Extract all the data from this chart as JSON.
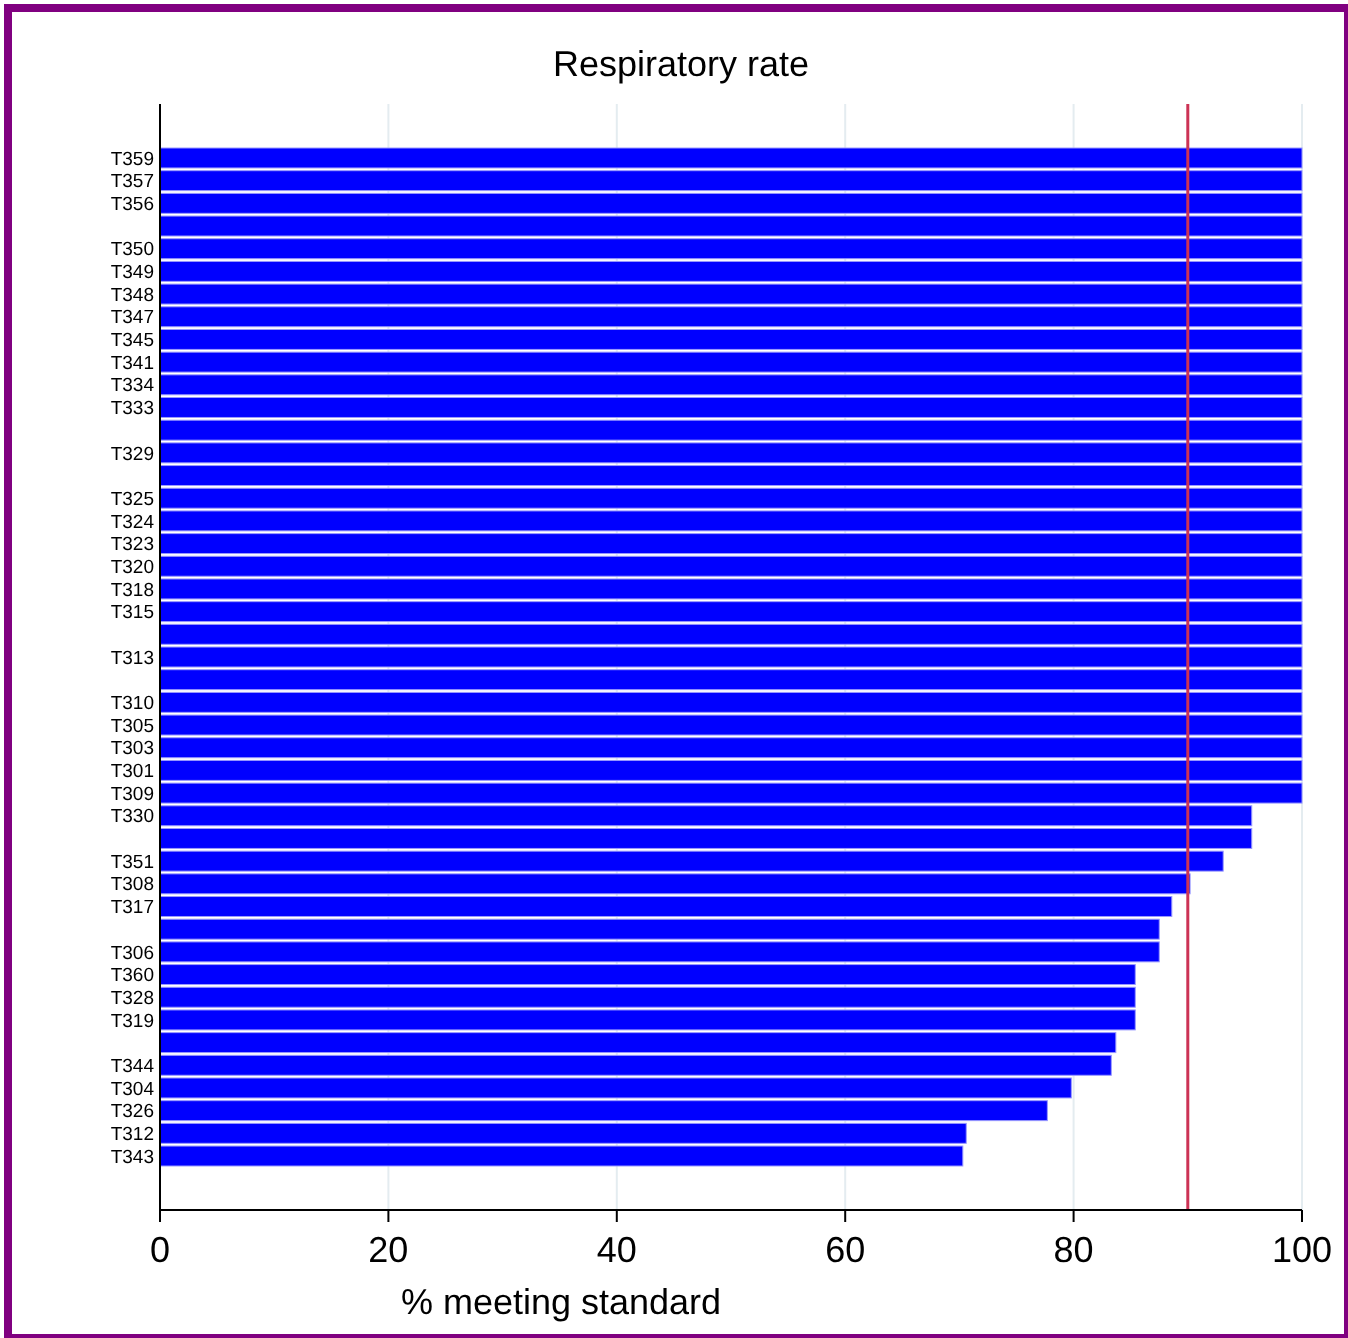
{
  "chart_data": {
    "type": "bar",
    "orientation": "horizontal",
    "title": "Respiratory rate",
    "xlabel": "% meeting standard",
    "categories": [
      "T359",
      "T357",
      "T356",
      null,
      "T350",
      "T349",
      "T348",
      "T347",
      "T345",
      "T341",
      "T334",
      "T333",
      null,
      "T329",
      null,
      "T325",
      "T324",
      "T323",
      "T320",
      "T318",
      "T315",
      null,
      "T313",
      null,
      "T310",
      "T305",
      "T303",
      "T301",
      "T309",
      "T330",
      null,
      "T351",
      "T308",
      "T317",
      null,
      "T306",
      "T360",
      "T328",
      "T319",
      null,
      "T344",
      "T304",
      "T326",
      "T312",
      "T343"
    ],
    "values": [
      100,
      100,
      100,
      100,
      100,
      100,
      100,
      100,
      100,
      100,
      100,
      100,
      100,
      100,
      100,
      100,
      100,
      100,
      100,
      100,
      100,
      100,
      100,
      100,
      100,
      100,
      100,
      100,
      100,
      95.6,
      95.6,
      93.1,
      90.2,
      88.6,
      87.5,
      87.5,
      85.4,
      85.4,
      85.4,
      83.7,
      83.3,
      79.8,
      77.7,
      70.6,
      70.3
    ],
    "color": "#0000ff",
    "xlim": [
      0,
      100
    ],
    "xticks": [
      0,
      20,
      40,
      60,
      80,
      100
    ],
    "grid": "x",
    "ref_lines": [
      {
        "axis": "x",
        "value": 90,
        "color": "#cc3355"
      }
    ]
  }
}
